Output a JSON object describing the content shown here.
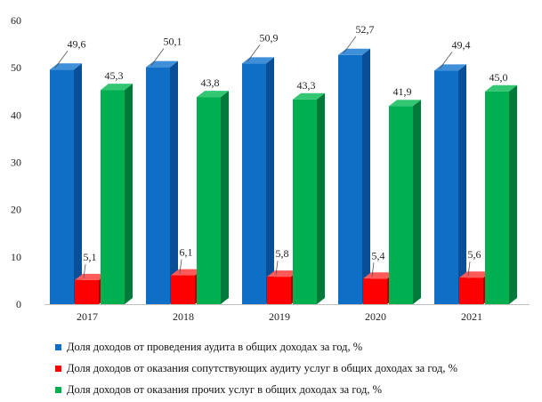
{
  "chart_data": {
    "type": "bar",
    "categories": [
      "2017",
      "2018",
      "2019",
      "2020",
      "2021"
    ],
    "series": [
      {
        "name": "Доля доходов от проведения аудита в общих доходах за год, %",
        "values": [
          49.6,
          50.1,
          50.9,
          52.7,
          49.4
        ],
        "labels": [
          "49,6",
          "50,1",
          "50,9",
          "52,7",
          "49,4"
        ],
        "color": "#0F6FC6"
      },
      {
        "name": "Доля доходов от оказания сопутствующих аудиту услуг в общих доходах за год, %",
        "values": [
          5.1,
          6.1,
          5.8,
          5.4,
          5.6
        ],
        "labels": [
          "5,1",
          "6,1",
          "5,8",
          "5,4",
          "5,6"
        ],
        "color": "#FF0000"
      },
      {
        "name": "Доля доходов  от оказания прочих услуг в общих доходах за год, %",
        "values": [
          45.3,
          43.8,
          43.3,
          41.9,
          45.0
        ],
        "labels": [
          "45,3",
          "43,8",
          "43,3",
          "41,9",
          "45,0"
        ],
        "color": "#00B050"
      }
    ],
    "yticks": [
      "0",
      "10",
      "20",
      "30",
      "40",
      "50",
      "60"
    ],
    "ylim": [
      0,
      60
    ],
    "grid": false,
    "legend_position": "bottom",
    "style": "3d-clustered-column"
  }
}
